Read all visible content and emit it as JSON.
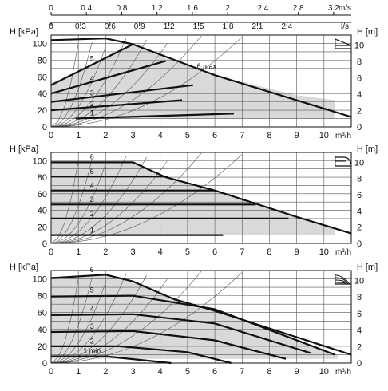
{
  "colors": {
    "ink": "#111111",
    "fill": "#d9d9d9",
    "grid": "#555555",
    "background": "#ffffff"
  },
  "top_axes": {
    "ms_ticks": [
      "0",
      "0.4",
      "0.8",
      "1.2",
      "1.6",
      "2",
      "2.4",
      "2.8",
      "3.2"
    ],
    "ms_values": [
      0,
      0.4,
      0.8,
      1.2,
      1.6,
      2.0,
      2.4,
      2.8,
      3.2
    ],
    "ms_unit": "m/s",
    "ls_ticks": [
      "0",
      "0.3",
      "0.6",
      "0.9",
      "1.2",
      "1.5",
      "1.8",
      "2.1",
      "2.4"
    ],
    "ls_values": [
      0,
      0.3,
      0.6,
      0.9,
      1.2,
      1.5,
      1.8,
      2.1,
      2.4
    ],
    "ls_unit": "l/s"
  },
  "chart_data": [
    {
      "type": "line",
      "control_mode": "proportional-pressure",
      "mode_icon": "proportional-pressure-icon",
      "xlabel": "m³/h",
      "ylabel_left": "H [kPa]",
      "ylabel_right": "H [m]",
      "xlim": [
        0,
        11
      ],
      "ylim": [
        0,
        110
      ],
      "x_ticks": [
        "0",
        "1",
        "2",
        "3",
        "4",
        "5",
        "6",
        "7",
        "8",
        "9",
        "10"
      ],
      "y_ticks_left": [
        "0",
        "20",
        "40",
        "60",
        "80",
        "100"
      ],
      "y_ticks_right": [
        "0",
        "2",
        "4",
        "6",
        "8",
        "10"
      ],
      "area": [
        [
          0,
          10
        ],
        [
          0,
          52
        ],
        [
          3,
          99
        ],
        [
          6,
          62
        ],
        [
          9,
          38
        ],
        [
          10.4,
          32
        ],
        [
          10.4,
          10
        ],
        [
          6.7,
          10
        ]
      ],
      "series": [
        {
          "name": "1",
          "points": [
            [
              0.9,
              10
            ],
            [
              6.7,
              16
            ]
          ],
          "label_pos": [
            1.5,
            14
          ]
        },
        {
          "name": "2",
          "points": [
            [
              0,
              20
            ],
            [
              4.8,
              32
            ]
          ],
          "label_pos": [
            1.5,
            25
          ]
        },
        {
          "name": "3",
          "points": [
            [
              0,
              30
            ],
            [
              5.2,
              50
            ]
          ],
          "label_pos": [
            1.5,
            38
          ]
        },
        {
          "name": "4",
          "points": [
            [
              0,
              40
            ],
            [
              4.2,
              79
            ]
          ],
          "label_pos": [
            1.5,
            55
          ]
        },
        {
          "name": "5",
          "points": [
            [
              0,
              50
            ],
            [
              3,
              99
            ]
          ],
          "label_pos": [
            1.5,
            79
          ]
        },
        {
          "name": "6 max",
          "points": [
            [
              0,
              104
            ],
            [
              2,
              106
            ],
            [
              3,
              99
            ],
            [
              6,
              62
            ],
            [
              11,
              12
            ]
          ],
          "label_pos": [
            5.7,
            70
          ]
        }
      ]
    },
    {
      "type": "line",
      "control_mode": "constant-pressure",
      "mode_icon": "constant-pressure-icon",
      "xlabel": "m³/h",
      "ylabel_left": "H [kPa]",
      "ylabel_right": "H [m]",
      "xlim": [
        0,
        11
      ],
      "ylim": [
        0,
        110
      ],
      "x_ticks": [
        "0",
        "1",
        "2",
        "3",
        "4",
        "5",
        "6",
        "7",
        "8",
        "9",
        "10"
      ],
      "y_ticks_left": [
        "0",
        "20",
        "40",
        "60",
        "80",
        "100"
      ],
      "y_ticks_right": [
        "0",
        "2",
        "4",
        "6",
        "8",
        "10"
      ],
      "area": [
        [
          0,
          10
        ],
        [
          0,
          98
        ],
        [
          3,
          98
        ],
        [
          4.2,
          80
        ],
        [
          6,
          64
        ],
        [
          9,
          32
        ],
        [
          10.4,
          17
        ],
        [
          10.4,
          10
        ],
        [
          6.3,
          10
        ]
      ],
      "series": [
        {
          "name": "1",
          "points": [
            [
              0,
              10
            ],
            [
              6.3,
              10
            ]
          ],
          "label_pos": [
            1.5,
            13
          ]
        },
        {
          "name": "2",
          "points": [
            [
              0,
              30
            ],
            [
              8.7,
              30
            ]
          ],
          "label_pos": [
            1.5,
            33
          ]
        },
        {
          "name": "3",
          "points": [
            [
              0,
              47
            ],
            [
              7.5,
              47
            ]
          ],
          "label_pos": [
            1.5,
            50
          ]
        },
        {
          "name": "4",
          "points": [
            [
              0,
              64
            ],
            [
              6,
              64
            ]
          ],
          "label_pos": [
            1.5,
            67
          ]
        },
        {
          "name": "5",
          "points": [
            [
              0,
              81
            ],
            [
              4.3,
              81
            ]
          ],
          "label_pos": [
            1.5,
            84
          ]
        },
        {
          "name": "6",
          "points": [
            [
              0,
              98
            ],
            [
              3,
              98
            ],
            [
              4.2,
              80
            ],
            [
              6,
              64
            ],
            [
              9,
              32
            ],
            [
              11,
              12
            ]
          ],
          "label_pos": [
            1.5,
            102
          ]
        }
      ]
    },
    {
      "type": "line",
      "control_mode": "constant-speed",
      "mode_icon": "constant-speed-icon",
      "xlabel": "m³/h",
      "ylabel_left": "H [kPa]",
      "ylabel_right": "H [m]",
      "xlim": [
        0,
        11
      ],
      "ylim": [
        0,
        110
      ],
      "x_ticks": [
        "0",
        "1",
        "2",
        "3",
        "4",
        "5",
        "6",
        "7",
        "8",
        "9",
        "10"
      ],
      "y_ticks_left": [
        "0",
        "20",
        "40",
        "60",
        "80",
        "100"
      ],
      "y_ticks_right": [
        "0",
        "2",
        "4",
        "6",
        "8",
        "10"
      ],
      "area": [
        [
          0,
          5
        ],
        [
          0,
          101
        ],
        [
          2,
          105
        ],
        [
          3,
          97
        ],
        [
          4.5,
          76
        ],
        [
          6,
          62
        ],
        [
          9,
          28
        ],
        [
          10.5,
          10
        ],
        [
          10.5,
          5
        ]
      ],
      "series": [
        {
          "name": "1 min",
          "points": [
            [
              0,
              8
            ],
            [
              2,
              8
            ],
            [
              4.4,
              0
            ]
          ],
          "label_pos": [
            1.5,
            12
          ]
        },
        {
          "name": "2",
          "points": [
            [
              0,
              20
            ],
            [
              2.5,
              20
            ],
            [
              5,
              13
            ],
            [
              6.6,
              0
            ]
          ],
          "label_pos": [
            1.5,
            23
          ]
        },
        {
          "name": "3",
          "points": [
            [
              0,
              37
            ],
            [
              3,
              38
            ],
            [
              6,
              27
            ],
            [
              8.6,
              5
            ]
          ],
          "label_pos": [
            1.5,
            41
          ]
        },
        {
          "name": "4",
          "points": [
            [
              0,
              57
            ],
            [
              3,
              58
            ],
            [
              6,
              47
            ],
            [
              9.5,
              12
            ]
          ],
          "label_pos": [
            1.5,
            61
          ]
        },
        {
          "name": "5",
          "points": [
            [
              0,
              79
            ],
            [
              3,
              80
            ],
            [
              6,
              64
            ],
            [
              10.4,
              10
            ]
          ],
          "label_pos": [
            1.5,
            84
          ]
        },
        {
          "name": "6",
          "points": [
            [
              0,
              101
            ],
            [
              2,
              105
            ],
            [
              3,
              97
            ],
            [
              4.5,
              76
            ],
            [
              6,
              62
            ],
            [
              11,
              10
            ]
          ],
          "label_pos": [
            1.5,
            108
          ]
        }
      ]
    }
  ]
}
